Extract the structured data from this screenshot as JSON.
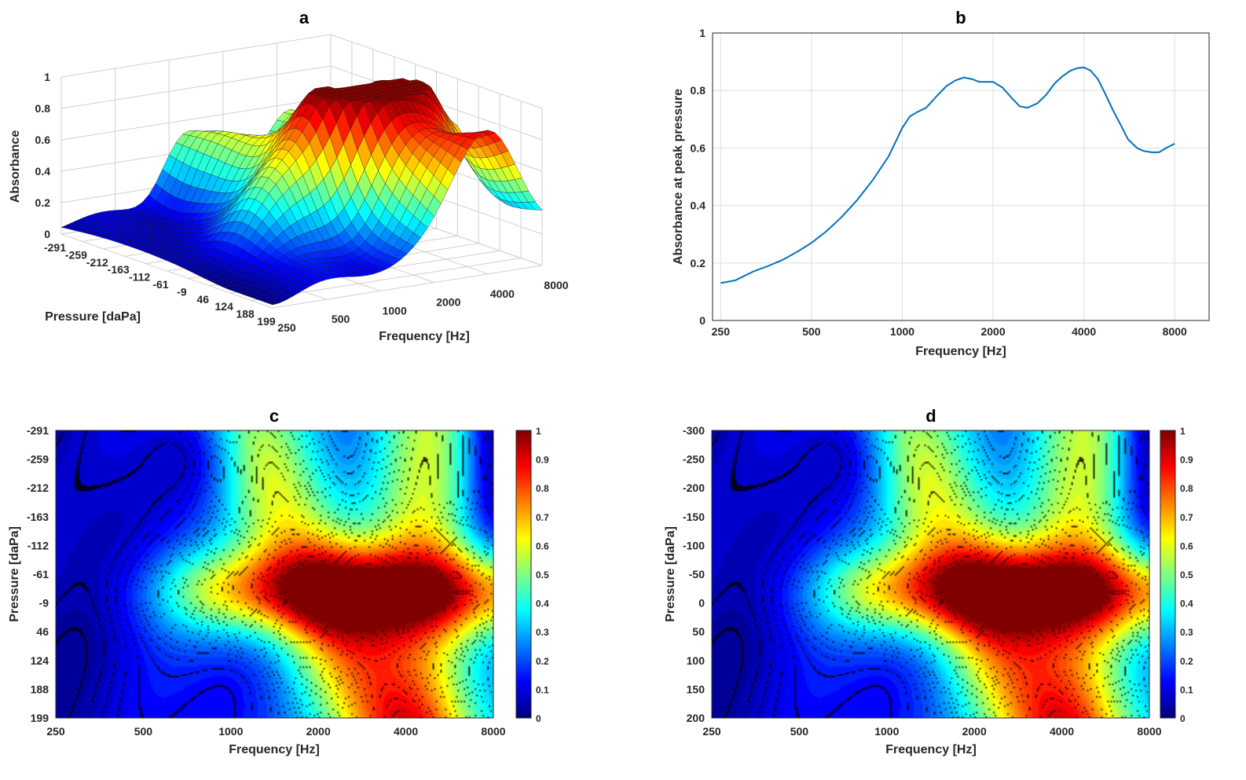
{
  "chart_data": [
    {
      "panel": "a",
      "type": "surface3d",
      "title": "a",
      "xlabel": "Frequency [Hz]",
      "ylabel": "Pressure [daPa]",
      "zlabel": "Absorbance",
      "x_ticks": [
        "250",
        "500",
        "1000",
        "2000",
        "4000",
        "8000"
      ],
      "x_tick_values": [
        250,
        500,
        1000,
        2000,
        4000,
        8000
      ],
      "y_ticks": [
        "-291",
        "-259",
        "-212",
        "-163",
        "-112",
        "-61",
        "-9",
        "46",
        "124",
        "188",
        "199"
      ],
      "y_tick_values": [
        -291,
        -259,
        -212,
        -163,
        -112,
        -61,
        -9,
        46,
        124,
        188,
        199
      ],
      "z_ticks": [
        "0",
        "0.2",
        "0.4",
        "0.6",
        "0.8",
        "1"
      ],
      "zlim": [
        0,
        1
      ],
      "x_scale": "log2",
      "colormap": "jet",
      "grid": true
    },
    {
      "panel": "b",
      "type": "line",
      "title": "b",
      "xlabel": "Frequency [Hz]",
      "ylabel": "Absorbance at peak pressure",
      "x_scale": "log2",
      "xlim": [
        235,
        10400
      ],
      "ylim": [
        0,
        1
      ],
      "x_ticks": [
        "250",
        "500",
        "1000",
        "2000",
        "4000",
        "8000"
      ],
      "x_tick_values": [
        250,
        500,
        1000,
        2000,
        4000,
        8000
      ],
      "y_ticks": [
        "0",
        "0.2",
        "0.4",
        "0.6",
        "0.8",
        "1"
      ],
      "y_tick_values": [
        0,
        0.2,
        0.4,
        0.6,
        0.8,
        1
      ],
      "grid": true,
      "line_color": "#0072BD",
      "series": [
        {
          "x": [
            250,
            280,
            320,
            360,
            400,
            450,
            500,
            560,
            630,
            710,
            800,
            900,
            1000,
            1060,
            1120,
            1200,
            1300,
            1400,
            1500,
            1600,
            1700,
            1800,
            1900,
            2000,
            2150,
            2300,
            2450,
            2600,
            2800,
            3000,
            3200,
            3400,
            3600,
            3800,
            4000,
            4200,
            4450,
            4700,
            5000,
            5300,
            5600,
            6000,
            6300,
            6700,
            7100,
            7500,
            8000
          ],
          "y": [
            0.13,
            0.14,
            0.17,
            0.19,
            0.21,
            0.24,
            0.27,
            0.31,
            0.36,
            0.42,
            0.49,
            0.57,
            0.67,
            0.71,
            0.725,
            0.74,
            0.78,
            0.815,
            0.835,
            0.845,
            0.84,
            0.83,
            0.83,
            0.83,
            0.81,
            0.775,
            0.745,
            0.74,
            0.755,
            0.785,
            0.825,
            0.85,
            0.868,
            0.878,
            0.88,
            0.87,
            0.84,
            0.79,
            0.73,
            0.68,
            0.63,
            0.6,
            0.59,
            0.585,
            0.585,
            0.6,
            0.615
          ]
        }
      ]
    },
    {
      "panel": "c",
      "type": "heatmap",
      "title": "c",
      "xlabel": "Frequency [Hz]",
      "ylabel": "Pressure [daPa]",
      "x_scale": "log2",
      "x_ticks": [
        "250",
        "500",
        "1000",
        "2000",
        "4000",
        "8000"
      ],
      "x_tick_values": [
        250,
        500,
        1000,
        2000,
        4000,
        8000
      ],
      "y_ticks": [
        "-291",
        "-259",
        "-212",
        "-163",
        "-112",
        "-61",
        "-9",
        "46",
        "124",
        "188",
        "199"
      ],
      "y_tick_values": [
        -291,
        -259,
        -212,
        -163,
        -112,
        -61,
        -9,
        46,
        124,
        188,
        199
      ],
      "ylim": [
        -291,
        199
      ],
      "colorbar_ticks": [
        "0",
        "0.1",
        "0.2",
        "0.3",
        "0.4",
        "0.5",
        "0.6",
        "0.7",
        "0.8",
        "0.9",
        "1"
      ],
      "clim": [
        0,
        1
      ],
      "colormap": "jet",
      "contours": true
    },
    {
      "panel": "d",
      "type": "heatmap",
      "title": "d",
      "xlabel": "Frequency [Hz]",
      "ylabel": "Pressure [daPa]",
      "x_scale": "log2",
      "x_ticks": [
        "250",
        "500",
        "1000",
        "2000",
        "4000",
        "8000"
      ],
      "x_tick_values": [
        250,
        500,
        1000,
        2000,
        4000,
        8000
      ],
      "y_ticks": [
        "-300",
        "-250",
        "-200",
        "-150",
        "-100",
        "-50",
        "0",
        "50",
        "100",
        "150",
        "200"
      ],
      "y_tick_values": [
        -300,
        -250,
        -200,
        -150,
        -100,
        -50,
        0,
        50,
        100,
        150,
        200
      ],
      "ylim": [
        -300,
        200
      ],
      "colorbar_ticks": [
        "0",
        "0.1",
        "0.2",
        "0.3",
        "0.4",
        "0.5",
        "0.6",
        "0.7",
        "0.8",
        "0.9",
        "1"
      ],
      "clim": [
        0,
        1
      ],
      "colormap": "jet",
      "contours": true
    }
  ]
}
